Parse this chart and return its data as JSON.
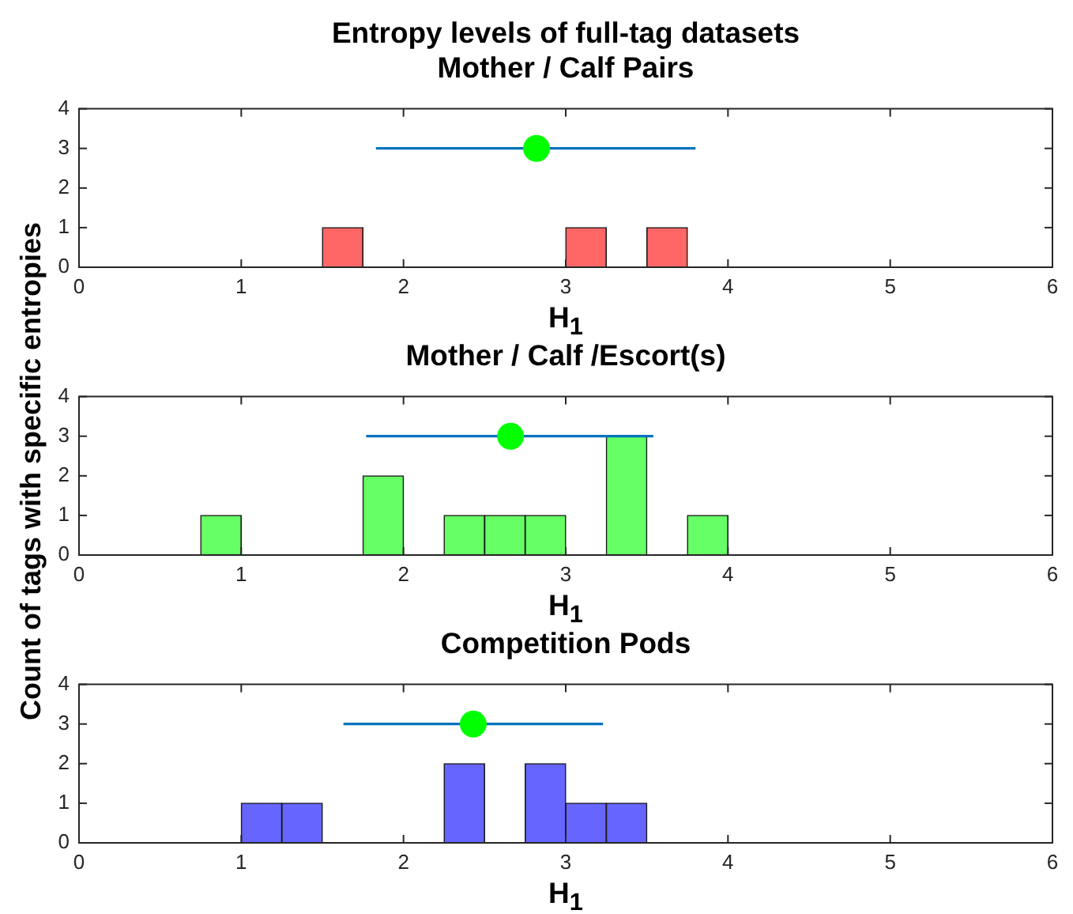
{
  "chart_data": [
    {
      "type": "histogram",
      "title": "Entropy levels of full-tag datasets",
      "subtitle": "Mother / Calf Pairs",
      "xlabel": "H$_{1}$",
      "bins": [
        1.5,
        1.75,
        2,
        2.25,
        2.5,
        2.75,
        3,
        3.25,
        3.5,
        3.75
      ],
      "xlim": [
        0,
        6
      ],
      "xticks": [
        0,
        1,
        2,
        3,
        4,
        5,
        6
      ],
      "ylim": [
        0,
        4
      ],
      "yticks": [
        0,
        1,
        2,
        3,
        4
      ],
      "series": [
        {
          "color": "#ff6666",
          "values": [
            1,
            0,
            0,
            0,
            0,
            0,
            1,
            0,
            1
          ]
        },
        {
          "type": "line",
          "color": "#0072bd",
          "x": [
            1.83,
            3.8
          ],
          "values": [
            3,
            3
          ]
        },
        {
          "type": "scatter",
          "color": "#00ff00",
          "marker": "circle",
          "x": [
            2.82
          ],
          "values": [
            3
          ]
        }
      ]
    },
    {
      "type": "histogram",
      "title": "Mother / Calf /Escort(s)",
      "xlabel": "H$_{1}$",
      "ylabel": "Count of tags with specific entropies",
      "bins": [
        0.75,
        1,
        1.25,
        1.5,
        1.75,
        2,
        2.25,
        2.5,
        2.75,
        3,
        3.25,
        3.5,
        3.75,
        4
      ],
      "xlim": [
        0,
        6
      ],
      "xticks": [
        0,
        1,
        2,
        3,
        4,
        5,
        6
      ],
      "ylim": [
        0,
        4
      ],
      "yticks": [
        0,
        1,
        2,
        3,
        4
      ],
      "series": [
        {
          "color": "#66ff66",
          "values": [
            1,
            0,
            0,
            0,
            2,
            0,
            1,
            1,
            1,
            0,
            3,
            0,
            1
          ]
        },
        {
          "type": "line",
          "color": "#0072bd",
          "x": [
            1.77,
            3.54
          ],
          "values": [
            3,
            3
          ]
        },
        {
          "type": "scatter",
          "color": "#00ff00",
          "marker": "circle",
          "x": [
            2.66
          ],
          "values": [
            3
          ]
        }
      ]
    },
    {
      "type": "histogram",
      "title": "Competition Pods",
      "xlabel": "H$_{1}$",
      "bins": [
        1,
        1.25,
        1.5,
        1.75,
        2,
        2.25,
        2.5,
        2.75,
        3,
        3.25,
        3.5
      ],
      "xlim": [
        0,
        6
      ],
      "xticks": [
        0,
        1,
        2,
        3,
        4,
        5,
        6
      ],
      "ylim": [
        0,
        4
      ],
      "yticks": [
        0,
        1,
        2,
        3,
        4
      ],
      "series": [
        {
          "color": "#6666ff",
          "values": [
            1,
            1,
            0,
            0,
            0,
            2,
            0,
            2,
            1,
            1
          ]
        },
        {
          "type": "line",
          "color": "#0072bd",
          "x": [
            1.63,
            3.23
          ],
          "values": [
            3,
            3
          ]
        },
        {
          "type": "scatter",
          "color": "#00ff00",
          "marker": "circle",
          "x": [
            2.43
          ],
          "values": [
            3
          ]
        }
      ]
    }
  ]
}
